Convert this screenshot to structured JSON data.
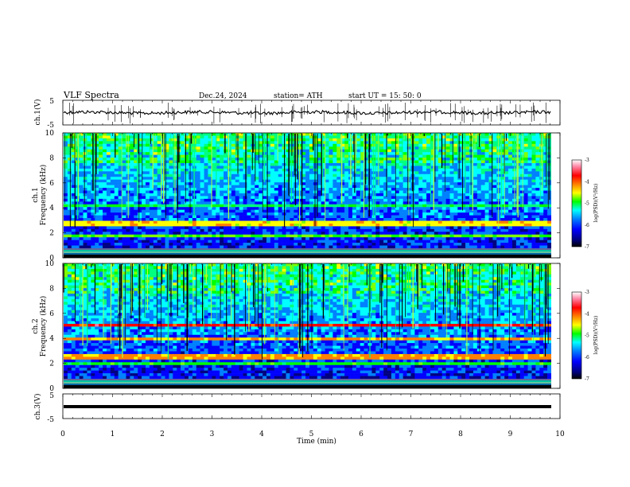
{
  "header": {
    "title": "VLF  Spectra",
    "date": "Dec.24, 2024",
    "station": "station= ATH",
    "start_ut": "start  UT  =    15: 50: 0"
  },
  "chart_data": [
    {
      "id": "ch1-waveform",
      "type": "line",
      "ylabel": "ch.1(V)",
      "ylim": [
        -5,
        5
      ],
      "yticks": [
        "5",
        "-5"
      ],
      "xlim": [
        0,
        10
      ],
      "line_color": "#000000"
    },
    {
      "id": "ch1-spectrogram",
      "type": "heatmap",
      "ylabel_line1": "ch.1",
      "ylabel_line2": "Frequency  (kHz)",
      "ylim": [
        0,
        10
      ],
      "yticks": [
        "0",
        "2",
        "4",
        "6",
        "8",
        "10"
      ],
      "xlim": [
        0,
        10
      ],
      "colorbar": {
        "label": "log(PSD)(V²/Hz)",
        "range": [
          -7,
          -3
        ],
        "ticks": [
          "-3",
          "-4",
          "-5",
          "-6",
          "-7"
        ]
      }
    },
    {
      "id": "ch2-spectrogram",
      "type": "heatmap",
      "ylabel_line1": "ch.2",
      "ylabel_line2": "Frequency  (kHz)",
      "ylim": [
        0,
        10
      ],
      "yticks": [
        "0",
        "2",
        "4",
        "6",
        "8",
        "10"
      ],
      "xlim": [
        0,
        10
      ],
      "colorbar": {
        "label": "log(PSD)(V²/Hz)",
        "range": [
          -7,
          -3
        ],
        "ticks": [
          "-3",
          "-4",
          "-5",
          "-6",
          "-7"
        ]
      }
    },
    {
      "id": "ch3-waveform",
      "type": "line",
      "ylabel": "ch.3(V)",
      "ylim": [
        -5,
        5
      ],
      "yticks": [
        "5",
        "-5"
      ],
      "xlim": [
        0,
        10
      ],
      "line_color": "#000000"
    }
  ],
  "x_axis": {
    "label": "Time  (min)",
    "range": [
      0,
      10
    ],
    "ticks": [
      "0",
      "1",
      "2",
      "3",
      "4",
      "5",
      "6",
      "7",
      "8",
      "9",
      "10"
    ]
  },
  "colormap": [
    "#000000",
    "#000080",
    "#0000ff",
    "#0080ff",
    "#00ffff",
    "#00ff80",
    "#00ff00",
    "#80ff00",
    "#ffff00",
    "#ff8000",
    "#ff0000",
    "#ff80a0",
    "#ffffff"
  ]
}
